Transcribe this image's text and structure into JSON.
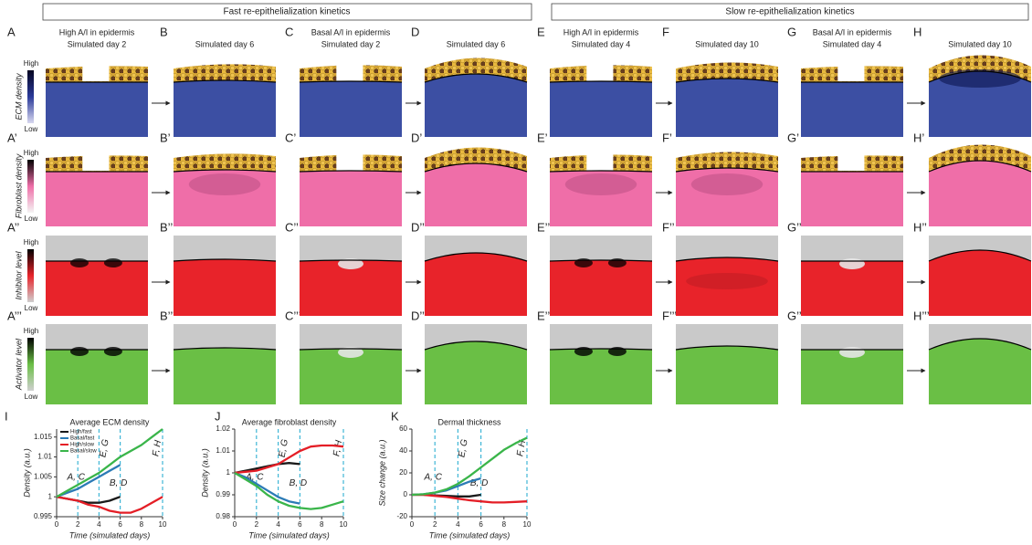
{
  "headers": [
    "Fast re-epithelialization kinetics",
    "Slow re-epithelialization kinetics"
  ],
  "columns": [
    {
      "letter": "A",
      "lines": [
        "High A/I in epidermis",
        "Simulated day 2"
      ]
    },
    {
      "letter": "B",
      "lines": [
        "Simulated day 6"
      ]
    },
    {
      "letter": "C",
      "lines": [
        "Basal A/I in epidermis",
        "Simulated day 2"
      ]
    },
    {
      "letter": "D",
      "lines": [
        "Simulated day 6"
      ]
    },
    {
      "letter": "E",
      "lines": [
        "High A/I in epidermis",
        "Simulated day 4"
      ]
    },
    {
      "letter": "F",
      "lines": [
        "Simulated day 10"
      ]
    },
    {
      "letter": "G",
      "lines": [
        "Basal A/I in epidermis",
        "Simulated day 4"
      ]
    },
    {
      "letter": "H",
      "lines": [
        "Simulated day 10"
      ]
    }
  ],
  "sublabels": [
    [
      "A’",
      "B’",
      "C’",
      "D’",
      "E’",
      "F’",
      "G’",
      "H’"
    ],
    [
      "A’’",
      "B’’",
      "C’’",
      "D’’",
      "E’’",
      "F’’",
      "G’’",
      "H’’"
    ],
    [
      "A’’’",
      "B’’’",
      "C’’’",
      "D’’’",
      "E’’’",
      "F’’’",
      "G’’’",
      "H’’’"
    ]
  ],
  "rows": [
    {
      "label": "ECM density",
      "high": "High",
      "low": "Low"
    },
    {
      "label": "Fibroblast density",
      "high": "High",
      "low": "Low"
    },
    {
      "label": "Inhibitor level",
      "high": "High",
      "low": "Low"
    },
    {
      "label": "Activator level",
      "high": "High",
      "low": "Low"
    }
  ],
  "chart_data": [
    {
      "type": "line",
      "letter": "I",
      "title": "Average ECM density",
      "x_label": "Time (simulated days)",
      "y_label": "Density (a.u.)",
      "x": [
        0,
        1,
        2,
        3,
        4,
        5,
        6,
        7,
        8,
        9,
        10
      ],
      "xlim": [
        0,
        10
      ],
      "xticks": [
        0,
        2,
        4,
        6,
        8,
        10
      ],
      "ylim": [
        0.995,
        1.017
      ],
      "yticks": [
        0.995,
        1,
        1.005,
        1.01,
        1.015
      ],
      "legend": "top-left",
      "markers": [
        {
          "x": 2,
          "label": "A, C"
        },
        {
          "x": 4,
          "label": "E, G"
        },
        {
          "x": 6,
          "label": "B, D"
        },
        {
          "x": 10,
          "label": "F, H"
        }
      ],
      "series": [
        {
          "name": "High/fast",
          "color": "#1a1a1a",
          "values": [
            1,
            0.9995,
            0.999,
            0.9985,
            0.9985,
            0.999,
            1.0,
            null,
            null,
            null,
            null
          ]
        },
        {
          "name": "Basal/fast",
          "color": "#2c7bb6",
          "values": [
            1,
            1.001,
            1.002,
            1.0035,
            1.005,
            1.0065,
            1.008,
            null,
            null,
            null,
            null
          ]
        },
        {
          "name": "High/slow",
          "color": "#e41e26",
          "values": [
            1,
            0.9995,
            0.999,
            0.998,
            0.9975,
            0.9965,
            0.996,
            0.996,
            0.997,
            0.9985,
            1.0
          ]
        },
        {
          "name": "Basal/slow",
          "color": "#3ab54a",
          "values": [
            1,
            1.0015,
            1.003,
            1.0045,
            1.006,
            1.008,
            1.01,
            1.0115,
            1.013,
            1.015,
            1.017
          ]
        }
      ]
    },
    {
      "type": "line",
      "letter": "J",
      "title": "Average fibroblast density",
      "x_label": "Time (simulated days)",
      "y_label": "Density (a.u.)",
      "x": [
        0,
        1,
        2,
        3,
        4,
        5,
        6,
        7,
        8,
        9,
        10
      ],
      "xlim": [
        0,
        10
      ],
      "xticks": [
        0,
        2,
        4,
        6,
        8,
        10
      ],
      "ylim": [
        0.98,
        1.02
      ],
      "yticks": [
        0.98,
        0.99,
        1,
        1.01,
        1.02
      ],
      "markers": [
        {
          "x": 2,
          "label": "A, C"
        },
        {
          "x": 4,
          "label": "E, G"
        },
        {
          "x": 6,
          "label": "B, D"
        },
        {
          "x": 10,
          "label": "F, H"
        }
      ],
      "series": [
        {
          "color": "#1a1a1a",
          "values": [
            1,
            1.001,
            1.002,
            1.003,
            1.004,
            1.0045,
            1.004,
            null,
            null,
            null,
            null
          ]
        },
        {
          "color": "#2c7bb6",
          "values": [
            1,
            0.998,
            0.995,
            0.992,
            0.989,
            0.987,
            0.986,
            null,
            null,
            null,
            null
          ]
        },
        {
          "color": "#e41e26",
          "values": [
            1,
            1.0005,
            1.001,
            1.0025,
            1.004,
            1.007,
            1.01,
            1.012,
            1.0125,
            1.0125,
            1.012
          ]
        },
        {
          "color": "#3ab54a",
          "values": [
            1,
            0.997,
            0.994,
            0.99,
            0.987,
            0.985,
            0.984,
            0.9835,
            0.984,
            0.9855,
            0.987
          ]
        }
      ]
    },
    {
      "type": "line",
      "letter": "K",
      "title": "Dermal thickness",
      "x_label": "Time (simulated days)",
      "y_label": "Size change (a.u.)",
      "x": [
        0,
        1,
        2,
        3,
        4,
        5,
        6,
        7,
        8,
        9,
        10
      ],
      "xlim": [
        0,
        10
      ],
      "xticks": [
        0,
        2,
        4,
        6,
        8,
        10
      ],
      "ylim": [
        -20,
        60
      ],
      "yticks": [
        -20,
        0,
        20,
        40,
        60
      ],
      "markers": [
        {
          "x": 2,
          "label": "A, C"
        },
        {
          "x": 4,
          "label": "E, G"
        },
        {
          "x": 6,
          "label": "B, D"
        },
        {
          "x": 10,
          "label": "F, H"
        }
      ],
      "series": [
        {
          "color": "#1a1a1a",
          "values": [
            0,
            0,
            -0.5,
            -1,
            -1.5,
            -1.5,
            0,
            null,
            null,
            null,
            null
          ]
        },
        {
          "color": "#2c7bb6",
          "values": [
            0,
            0.5,
            2,
            4,
            8,
            12,
            15,
            null,
            null,
            null,
            null
          ]
        },
        {
          "color": "#e41e26",
          "values": [
            0,
            0,
            -1,
            -2,
            -3.5,
            -5,
            -6,
            -7,
            -7,
            -6.5,
            -6
          ]
        },
        {
          "color": "#3ab54a",
          "values": [
            0,
            0.5,
            2,
            5,
            10,
            17,
            25,
            33,
            41,
            47,
            52
          ]
        }
      ]
    }
  ]
}
